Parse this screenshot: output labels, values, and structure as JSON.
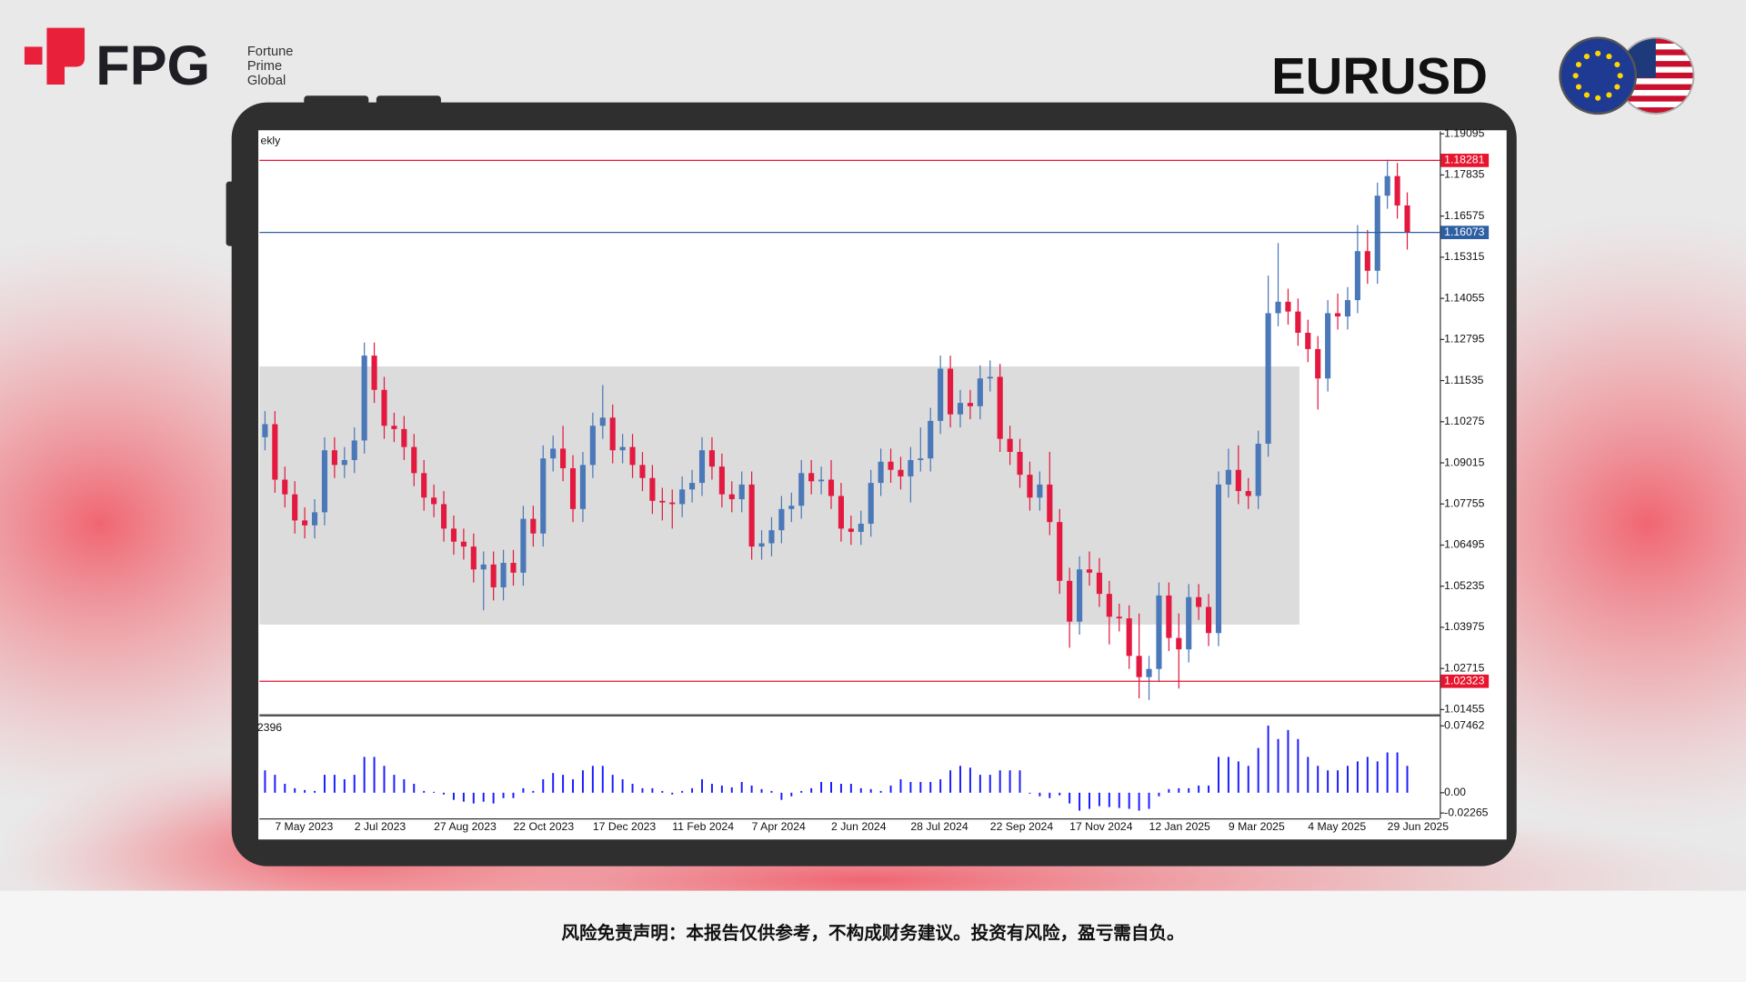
{
  "header": {
    "logo": "FPG",
    "tagline": [
      "Fortune",
      "Prime",
      "Global"
    ],
    "symbol": "EURUSD"
  },
  "footer": {
    "disclaimer": "风险免责声明：本报告仅供参考，不构成财务建议。投资有风险，盈亏需自负。"
  },
  "chart_data": {
    "type": "candlestick",
    "timeframe_label": "ekly",
    "up_color": "#4a78b8",
    "down_color": "#e3193f",
    "categories": [
      null,
      "7 May 2023",
      null,
      null,
      null,
      null,
      null,
      null,
      null,
      "2 Jul 2023",
      null,
      null,
      null,
      null,
      null,
      null,
      null,
      "27 Aug 2023",
      null,
      null,
      null,
      null,
      null,
      null,
      null,
      "22 Oct 2023",
      null,
      null,
      null,
      null,
      null,
      null,
      null,
      "17 Dec 2023",
      null,
      null,
      null,
      null,
      null,
      null,
      null,
      "11 Feb 2024",
      null,
      null,
      null,
      null,
      null,
      null,
      null,
      "7 Apr 2024",
      null,
      null,
      null,
      null,
      null,
      null,
      null,
      "2 Jun 2024",
      null,
      null,
      null,
      null,
      null,
      null,
      null,
      "28 Jul 2024",
      null,
      null,
      null,
      null,
      null,
      null,
      null,
      "22 Sep 2024",
      null,
      null,
      null,
      null,
      null,
      null,
      null,
      "17 Nov 2024",
      null,
      null,
      null,
      null,
      null,
      null,
      null,
      "12 Jan 2025",
      null,
      null,
      null,
      null,
      null,
      null,
      null,
      "9 Mar 2025",
      null,
      null,
      null,
      null,
      null,
      null,
      null,
      "4 May 2025",
      null,
      null,
      null,
      null,
      null,
      null,
      null,
      "29 Jun 2025",
      null,
      null
    ],
    "ohlc": [
      [
        1.098,
        1.106,
        1.094,
        1.102
      ],
      [
        1.102,
        1.106,
        1.081,
        1.085
      ],
      [
        1.085,
        1.089,
        1.0765,
        1.0805
      ],
      [
        1.0805,
        1.0845,
        1.0685,
        1.0725
      ],
      [
        1.0725,
        1.0765,
        1.067,
        1.071
      ],
      [
        1.071,
        1.079,
        1.067,
        1.075
      ],
      [
        1.075,
        1.098,
        1.071,
        1.094
      ],
      [
        1.094,
        1.098,
        1.0855,
        1.0895
      ],
      [
        1.0895,
        1.095,
        1.0855,
        1.091
      ],
      [
        1.091,
        1.101,
        1.087,
        1.097
      ],
      [
        1.097,
        1.127,
        1.093,
        1.123
      ],
      [
        1.123,
        1.127,
        1.1085,
        1.1125
      ],
      [
        1.1125,
        1.1165,
        1.0975,
        1.1015
      ],
      [
        1.1015,
        1.1055,
        1.0965,
        1.1005
      ],
      [
        1.1005,
        1.1045,
        1.091,
        1.095
      ],
      [
        1.095,
        1.099,
        1.083,
        1.087
      ],
      [
        1.087,
        1.091,
        1.0755,
        1.0795
      ],
      [
        1.0795,
        1.0835,
        1.0735,
        1.0775
      ],
      [
        1.0775,
        1.0815,
        1.066,
        1.07
      ],
      [
        1.07,
        1.074,
        1.062,
        1.066
      ],
      [
        1.066,
        1.07,
        1.0605,
        1.0645
      ],
      [
        1.0645,
        1.0685,
        1.0535,
        1.0575
      ],
      [
        1.0575,
        1.063,
        1.045,
        1.059
      ],
      [
        1.059,
        1.063,
        1.048,
        1.052
      ],
      [
        1.052,
        1.0635,
        1.048,
        1.0595
      ],
      [
        1.0595,
        1.0635,
        1.0525,
        1.0565
      ],
      [
        1.0565,
        1.077,
        1.0525,
        1.073
      ],
      [
        1.073,
        1.077,
        1.0645,
        1.0685
      ],
      [
        1.0685,
        1.0955,
        1.0645,
        1.0915
      ],
      [
        1.0915,
        1.0985,
        1.0875,
        1.0945
      ],
      [
        1.0945,
        1.1015,
        1.0845,
        1.0885
      ],
      [
        1.0885,
        1.0925,
        1.072,
        1.076
      ],
      [
        1.076,
        1.0935,
        1.072,
        1.0895
      ],
      [
        1.0895,
        1.1055,
        1.0855,
        1.1015
      ],
      [
        1.1015,
        1.114,
        1.0975,
        1.104
      ],
      [
        1.104,
        1.108,
        1.09,
        1.094
      ],
      [
        1.094,
        1.099,
        1.09,
        1.095
      ],
      [
        1.095,
        1.099,
        1.0855,
        1.0895
      ],
      [
        1.0895,
        1.0935,
        1.0815,
        1.0855
      ],
      [
        1.0855,
        1.0895,
        1.0745,
        1.0785
      ],
      [
        1.0785,
        1.0825,
        1.0725,
        1.078
      ],
      [
        1.078,
        1.082,
        1.07,
        1.0775
      ],
      [
        1.0775,
        1.086,
        1.0735,
        1.082
      ],
      [
        1.082,
        1.088,
        1.078,
        1.084
      ],
      [
        1.084,
        1.098,
        1.08,
        1.094
      ],
      [
        1.094,
        1.098,
        1.085,
        1.089
      ],
      [
        1.089,
        1.093,
        1.0765,
        1.0805
      ],
      [
        1.0805,
        1.0845,
        1.075,
        1.079
      ],
      [
        1.079,
        1.0875,
        1.075,
        1.0835
      ],
      [
        1.0835,
        1.0875,
        1.0605,
        1.0645
      ],
      [
        1.0645,
        1.0695,
        1.0605,
        1.0655
      ],
      [
        1.0655,
        1.0735,
        1.0615,
        1.0695
      ],
      [
        1.0695,
        1.08,
        1.0655,
        1.076
      ],
      [
        1.076,
        1.081,
        1.072,
        1.077
      ],
      [
        1.077,
        1.091,
        1.073,
        1.087
      ],
      [
        1.087,
        1.091,
        1.0805,
        1.0845
      ],
      [
        1.0845,
        1.089,
        1.0805,
        1.085
      ],
      [
        1.085,
        1.091,
        1.076,
        1.08
      ],
      [
        1.08,
        1.084,
        1.066,
        1.07
      ],
      [
        1.07,
        1.074,
        1.065,
        1.069
      ],
      [
        1.069,
        1.0755,
        1.065,
        1.0715
      ],
      [
        1.0715,
        1.088,
        1.0675,
        1.084
      ],
      [
        1.084,
        1.0945,
        1.08,
        1.0905
      ],
      [
        1.0905,
        1.0945,
        1.084,
        1.088
      ],
      [
        1.088,
        1.092,
        1.082,
        1.086
      ],
      [
        1.086,
        1.095,
        1.078,
        1.091
      ],
      [
        1.091,
        1.101,
        1.0875,
        1.0915
      ],
      [
        1.0915,
        1.107,
        1.0875,
        1.103
      ],
      [
        1.103,
        1.123,
        1.099,
        1.119
      ],
      [
        1.119,
        1.123,
        1.101,
        1.105
      ],
      [
        1.105,
        1.1125,
        1.101,
        1.1085
      ],
      [
        1.1085,
        1.1125,
        1.1035,
        1.1075
      ],
      [
        1.1075,
        1.12,
        1.1035,
        1.116
      ],
      [
        1.116,
        1.1215,
        1.112,
        1.1165
      ],
      [
        1.1165,
        1.1205,
        1.0935,
        1.0975
      ],
      [
        1.0975,
        1.1015,
        1.0895,
        1.0935
      ],
      [
        1.0935,
        1.0975,
        1.0825,
        1.0865
      ],
      [
        1.0865,
        1.0905,
        1.0755,
        1.0795
      ],
      [
        1.0795,
        1.0875,
        1.0755,
        1.0835
      ],
      [
        1.0835,
        1.0935,
        1.068,
        1.072
      ],
      [
        1.072,
        1.076,
        1.05,
        1.054
      ],
      [
        1.054,
        1.058,
        1.0335,
        1.0415
      ],
      [
        1.0415,
        1.0615,
        1.0375,
        1.0575
      ],
      [
        1.0575,
        1.063,
        1.0525,
        1.0565
      ],
      [
        1.0565,
        1.061,
        1.046,
        1.05
      ],
      [
        1.05,
        1.054,
        1.0345,
        1.043
      ],
      [
        1.043,
        1.047,
        1.0385,
        1.0425
      ],
      [
        1.0425,
        1.0465,
        1.027,
        1.031
      ],
      [
        1.031,
        1.044,
        1.018,
        1.0245
      ],
      [
        1.0245,
        1.031,
        1.0175,
        1.027
      ],
      [
        1.027,
        1.0535,
        1.023,
        1.0495
      ],
      [
        1.0495,
        1.0535,
        1.0325,
        1.0365
      ],
      [
        1.0365,
        1.044,
        1.021,
        1.033
      ],
      [
        1.033,
        1.053,
        1.029,
        1.049
      ],
      [
        1.049,
        1.053,
        1.042,
        1.046
      ],
      [
        1.046,
        1.05,
        1.034,
        1.038
      ],
      [
        1.038,
        1.0875,
        1.034,
        1.0835
      ],
      [
        1.0835,
        1.0945,
        1.0795,
        1.088
      ],
      [
        1.088,
        1.0955,
        1.0775,
        1.0815
      ],
      [
        1.0815,
        1.0855,
        1.076,
        1.08
      ],
      [
        1.08,
        1.1,
        1.076,
        1.096
      ],
      [
        1.096,
        1.1475,
        1.092,
        1.136
      ],
      [
        1.136,
        1.1575,
        1.132,
        1.1395
      ],
      [
        1.1395,
        1.1435,
        1.1325,
        1.1365
      ],
      [
        1.1365,
        1.1405,
        1.126,
        1.13
      ],
      [
        1.13,
        1.134,
        1.121,
        1.125
      ],
      [
        1.125,
        1.129,
        1.1065,
        1.116
      ],
      [
        1.116,
        1.14,
        1.112,
        1.136
      ],
      [
        1.136,
        1.142,
        1.131,
        1.135
      ],
      [
        1.135,
        1.144,
        1.131,
        1.14
      ],
      [
        1.14,
        1.163,
        1.136,
        1.155
      ],
      [
        1.155,
        1.1615,
        1.145,
        1.149
      ],
      [
        1.149,
        1.176,
        1.145,
        1.172
      ],
      [
        1.172,
        1.183,
        1.168,
        1.178
      ],
      [
        1.178,
        1.182,
        1.165,
        1.169
      ],
      [
        1.169,
        1.173,
        1.1555,
        1.16073
      ]
    ],
    "ylim": [
      1.0133,
      1.1917
    ],
    "yticks": [
      1.19095,
      1.17835,
      1.16575,
      1.15315,
      1.14055,
      1.12795,
      1.11535,
      1.10275,
      1.09015,
      1.07755,
      1.06495,
      1.05235,
      1.03975,
      1.02715,
      1.01455
    ],
    "zone": {
      "range": [
        1.0406,
        1.1197
      ],
      "color": "#dcdcdc"
    },
    "levels": [
      {
        "value": 1.18281,
        "color": "#e8152e"
      },
      {
        "value": 1.16073,
        "color": "#2e5fa3"
      },
      {
        "value": 1.02323,
        "color": "#e8152e"
      }
    ],
    "indicator": {
      "label": "2396",
      "color": "#1a1aff",
      "ylim": [
        -0.0286,
        0.0833
      ],
      "yticks": [
        0.07462,
        {
          "value": 0,
          "label": "0.00"
        },
        -0.02265
      ],
      "values": [
        0.025,
        0.02,
        0.01,
        0.005,
        0.003,
        0.002,
        0.02,
        0.02,
        0.015,
        0.02,
        0.04,
        0.04,
        0.03,
        0.02,
        0.015,
        0.01,
        0.002,
        0.001,
        -0.002,
        -0.008,
        -0.01,
        -0.012,
        -0.01,
        -0.012,
        -0.006,
        -0.006,
        0.005,
        0.002,
        0.015,
        0.022,
        0.02,
        0.015,
        0.025,
        0.03,
        0.03,
        0.02,
        0.015,
        0.01,
        0.005,
        0.005,
        0.002,
        -0.002,
        0.002,
        0.005,
        0.015,
        0.01,
        0.008,
        0.006,
        0.012,
        0.008,
        0.004,
        0.002,
        -0.008,
        -0.004,
        0.002,
        0.005,
        0.012,
        0.012,
        0.01,
        0.01,
        0.005,
        0.004,
        0.002,
        0.008,
        0.015,
        0.012,
        0.012,
        0.012,
        0.015,
        0.025,
        0.03,
        0.028,
        0.02,
        0.02,
        0.025,
        0.025,
        0.025,
        -0.001,
        -0.004,
        -0.006,
        -0.003,
        -0.012,
        -0.02,
        -0.018,
        -0.015,
        -0.016,
        -0.017,
        -0.018,
        -0.02,
        -0.018,
        -0.004,
        0.004,
        0.005,
        0.005,
        0.008,
        0.008,
        0.04,
        0.04,
        0.035,
        0.03,
        0.05,
        0.075,
        0.06,
        0.07,
        0.06,
        0.04,
        0.03,
        0.025,
        0.025,
        0.03,
        0.035,
        0.04,
        0.035,
        0.045,
        0.045,
        0.03
      ]
    }
  }
}
